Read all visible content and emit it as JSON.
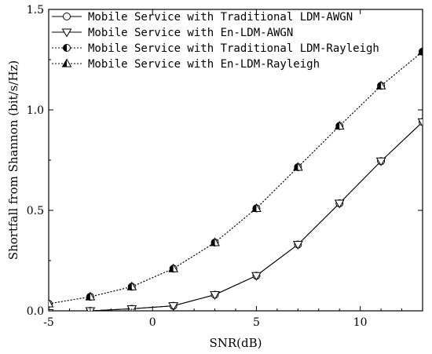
{
  "chart_data": {
    "type": "line",
    "xlabel": "SNR(dB)",
    "ylabel": "Shortfall from Shannon (bit/s/Hz)",
    "xlim": [
      -5,
      13
    ],
    "ylim": [
      0,
      1.5
    ],
    "x_ticks": [
      -5,
      0,
      5,
      10
    ],
    "y_ticks": [
      0.0,
      0.5,
      1.0,
      1.5
    ],
    "grid": false,
    "legend_position": "top-left",
    "series": [
      {
        "name": "Mobile Service with Traditional LDM-AWGN",
        "marker": "open-circle",
        "line": "solid",
        "x": [
          -5,
          -3,
          -1,
          1,
          3,
          5,
          7,
          9,
          11,
          13
        ],
        "y": [
          -0.01,
          0.0,
          0.01,
          0.025,
          0.08,
          0.175,
          0.33,
          0.535,
          0.745,
          0.94
        ]
      },
      {
        "name": "Mobile Service with En-LDM-AWGN",
        "marker": "open-triangle-down",
        "line": "solid",
        "x": [
          -5,
          -3,
          -1,
          1,
          3,
          5,
          7,
          9,
          11,
          13
        ],
        "y": [
          -0.01,
          0.0,
          0.01,
          0.025,
          0.08,
          0.175,
          0.33,
          0.535,
          0.745,
          0.94
        ]
      },
      {
        "name": "Mobile Service with Traditional LDM-Rayleigh",
        "marker": "half-filled-circle",
        "line": "dotted",
        "x": [
          -5,
          -3,
          -1,
          1,
          3,
          5,
          7,
          9,
          11,
          13
        ],
        "y": [
          0.035,
          0.07,
          0.12,
          0.21,
          0.34,
          0.51,
          0.715,
          0.92,
          1.12,
          1.29
        ]
      },
      {
        "name": "Mobile Service with En-LDM-Rayleigh",
        "marker": "half-filled-triangle-up",
        "line": "dotted",
        "x": [
          -5,
          -3,
          -1,
          1,
          3,
          5,
          7,
          9,
          11,
          13
        ],
        "y": [
          0.035,
          0.07,
          0.12,
          0.21,
          0.34,
          0.51,
          0.715,
          0.92,
          1.12,
          1.29
        ]
      }
    ]
  }
}
